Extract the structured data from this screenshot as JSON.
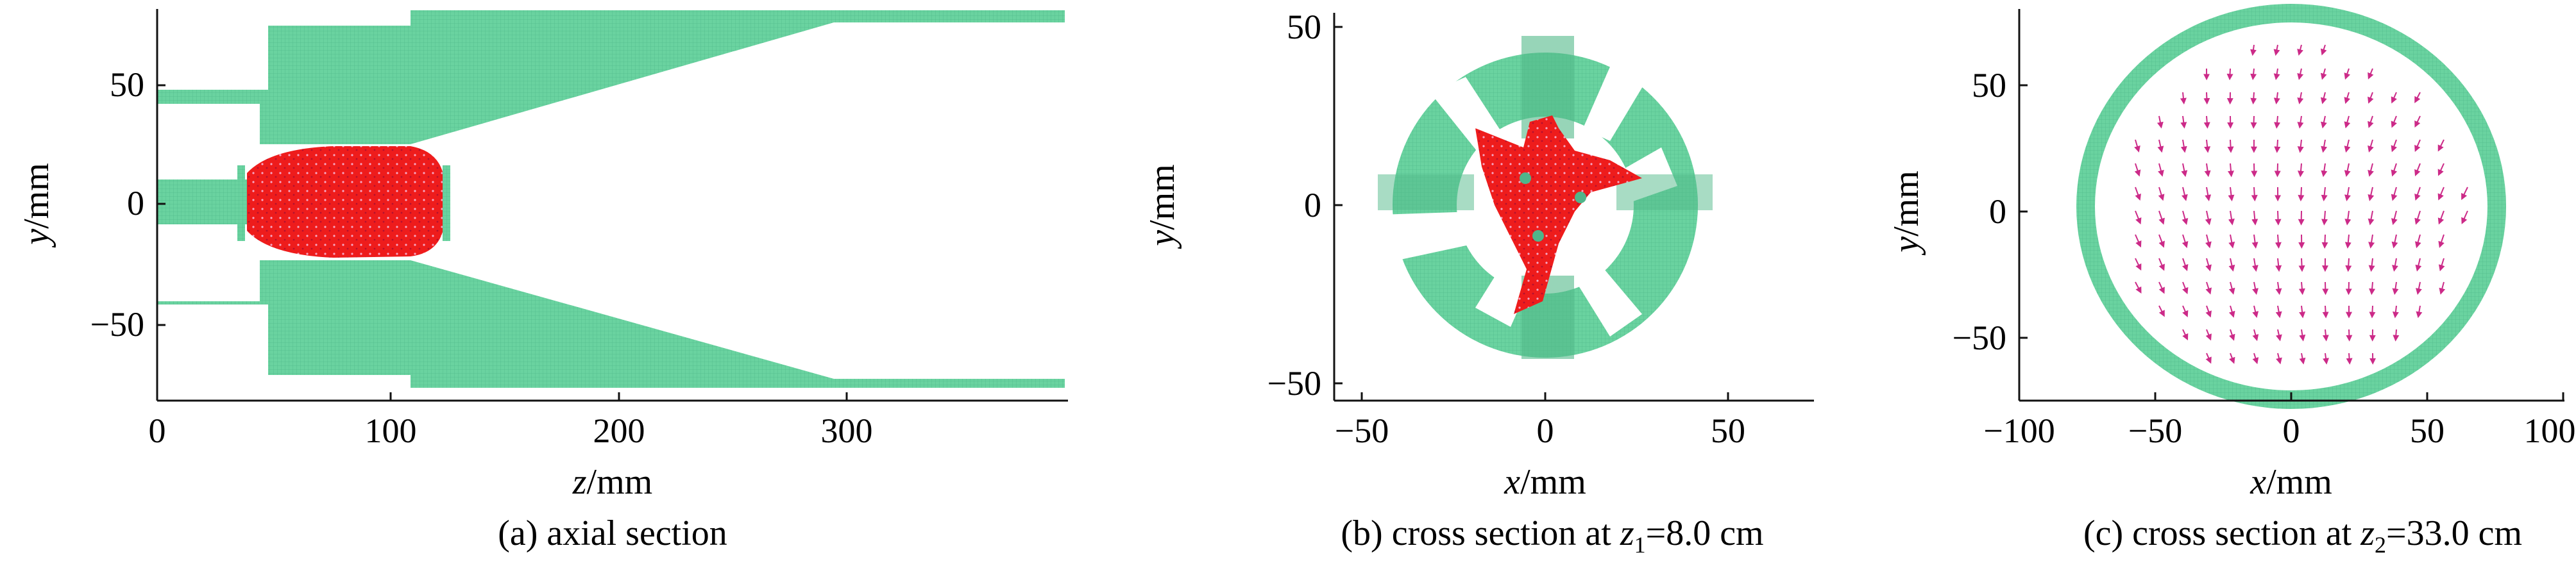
{
  "panels": [
    {
      "id": "a",
      "caption_prefix": "(a) axial section",
      "xlabel_var": "z",
      "xlabel_unit": "/mm",
      "ylabel_var": "y",
      "ylabel_unit": "/mm",
      "xticks": [
        "0",
        "100",
        "200",
        "300"
      ],
      "yticks": [
        "50",
        "0",
        "−50"
      ]
    },
    {
      "id": "b",
      "caption_prefix": "(b) cross section at ",
      "caption_var": "z",
      "caption_sub": "1",
      "caption_rest": "=8.0 cm",
      "xlabel_var": "x",
      "xlabel_unit": "/mm",
      "ylabel_var": "y",
      "ylabel_unit": "/mm",
      "xticks": [
        "−50",
        "0",
        "50"
      ],
      "yticks": [
        "50",
        "0",
        "−50"
      ]
    },
    {
      "id": "c",
      "caption_prefix": "(c) cross section at ",
      "caption_var": "z",
      "caption_sub": "2",
      "caption_rest": "=33.0 cm",
      "xlabel_var": "x",
      "xlabel_unit": "/mm",
      "ylabel_var": "y",
      "ylabel_unit": "/mm",
      "xticks": [
        "−100",
        "−50",
        "0",
        "50",
        "100"
      ],
      "yticks": [
        "50",
        "0",
        "−50"
      ]
    }
  ],
  "colors": {
    "wall": "#6ad3a0",
    "wall_dark": "#52b989",
    "particles": "#ee1c1c",
    "particle_speckle": "#c8103a",
    "arrows": "#cc2a88",
    "axis": "#111111"
  }
}
